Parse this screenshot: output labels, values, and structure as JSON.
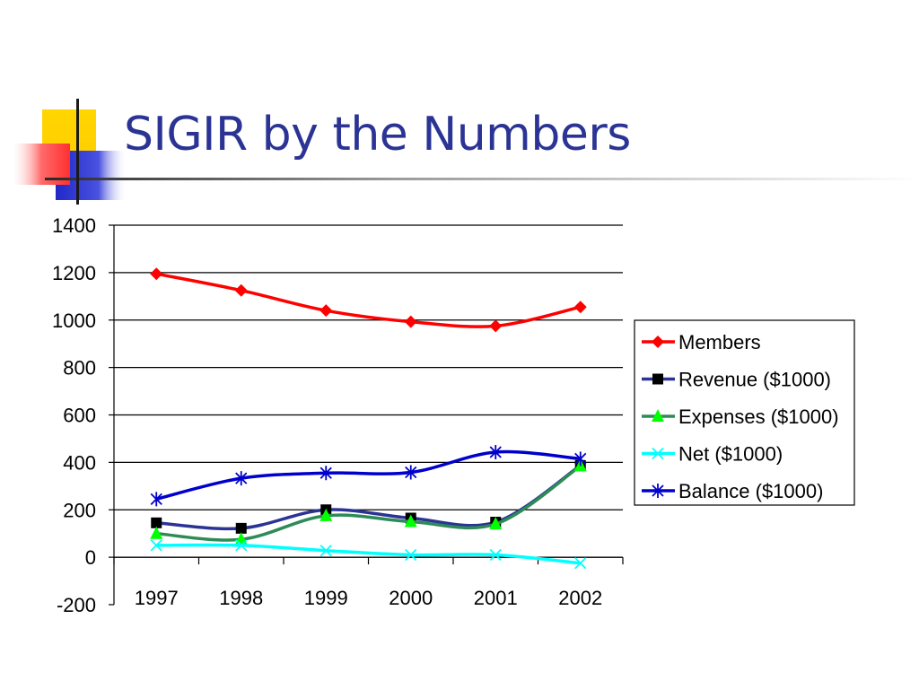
{
  "slide": {
    "title": "SIGIR by the Numbers"
  },
  "chart_data": {
    "type": "line",
    "title": "",
    "xlabel": "",
    "ylabel": "",
    "categories": [
      "1997",
      "1998",
      "1999",
      "2000",
      "2001",
      "2002"
    ],
    "ylim": [
      -200,
      1400
    ],
    "yticks": [
      "-200",
      "0",
      "200",
      "400",
      "600",
      "800",
      "1000",
      "1200",
      "1400"
    ],
    "grid": "horizontal",
    "legend_position": "right",
    "series": [
      {
        "name": "Members",
        "values": [
          1195,
          1125,
          1040,
          993,
          975,
          1055
        ],
        "color": "#ff0000",
        "marker": "diamond"
      },
      {
        "name": "Revenue ($1000)",
        "values": [
          145,
          122,
          200,
          165,
          148,
          387
        ],
        "color": "#2b3494",
        "marker": "square"
      },
      {
        "name": "Expenses ($1000)",
        "values": [
          100,
          75,
          175,
          150,
          140,
          385
        ],
        "color": "#2e8b57",
        "marker": "triangle"
      },
      {
        "name": "Net ($1000)",
        "values": [
          50,
          50,
          28,
          10,
          10,
          -25
        ],
        "color": "#00ffff",
        "marker": "x"
      },
      {
        "name": "Balance ($1000)",
        "values": [
          245,
          333,
          355,
          358,
          443,
          415
        ],
        "color": "#0000cc",
        "marker": "star"
      }
    ]
  }
}
